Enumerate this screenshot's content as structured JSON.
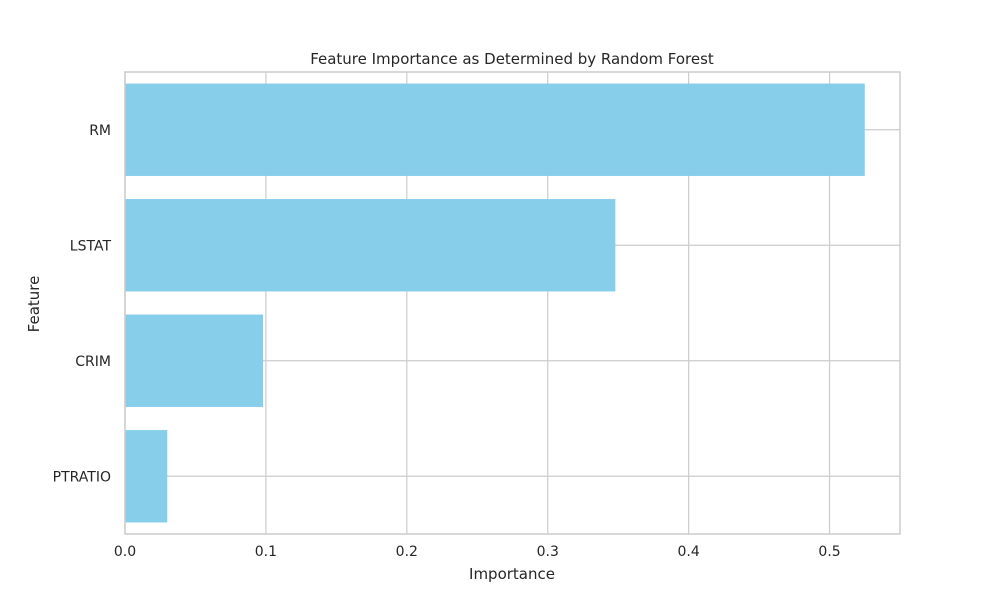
{
  "chart_data": {
    "type": "bar",
    "orientation": "horizontal",
    "title": "Feature Importance as Determined by Random Forest",
    "xlabel": "Importance",
    "ylabel": "Feature",
    "categories": [
      "RM",
      "LSTAT",
      "CRIM",
      "PTRATIO"
    ],
    "values": [
      0.525,
      0.348,
      0.098,
      0.03
    ],
    "xlim": [
      0,
      0.55
    ],
    "xticks": [
      0.0,
      0.1,
      0.2,
      0.3,
      0.4,
      0.5
    ],
    "xtick_labels": [
      "0.0",
      "0.1",
      "0.2",
      "0.3",
      "0.4",
      "0.5"
    ],
    "grid": true,
    "bar_color": "#87CEEB",
    "grid_color": "#cccccc",
    "frame_color": "#cccccc"
  }
}
